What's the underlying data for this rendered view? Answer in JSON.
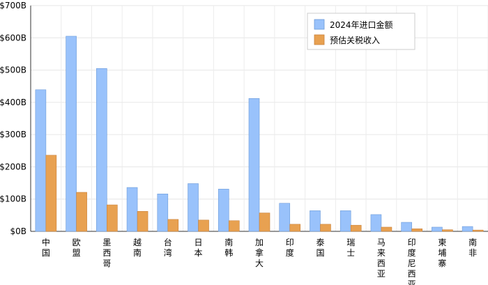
{
  "chart_data": {
    "type": "bar",
    "categories": [
      "中国",
      "欧盟",
      "墨西哥",
      "越南",
      "台湾",
      "日本",
      "南韩",
      "加拿大",
      "印度",
      "泰国",
      "瑞士",
      "马来西亚",
      "印度尼西亚",
      "柬埔寨",
      "南非"
    ],
    "series": [
      {
        "name": "2024年进口金额",
        "color": "#99c2fb",
        "values": [
          439,
          605,
          505,
          136,
          116,
          148,
          131,
          412,
          87,
          64,
          64,
          52,
          28,
          13,
          15
        ]
      },
      {
        "name": "预估关税收入",
        "color": "#e8a151",
        "values": [
          236,
          121,
          82,
          62,
          37,
          35,
          33,
          57,
          22,
          22,
          19,
          13,
          8,
          5,
          4
        ]
      }
    ],
    "ylim": [
      0,
      700
    ],
    "yticks": [
      0,
      100,
      200,
      300,
      400,
      500,
      600,
      700
    ],
    "ytick_labels": [
      "$0B",
      "$100B",
      "$200B",
      "$300B",
      "$400B",
      "$500B",
      "$600B",
      "$700B"
    ],
    "legend_position": "top-right",
    "grid": true
  }
}
